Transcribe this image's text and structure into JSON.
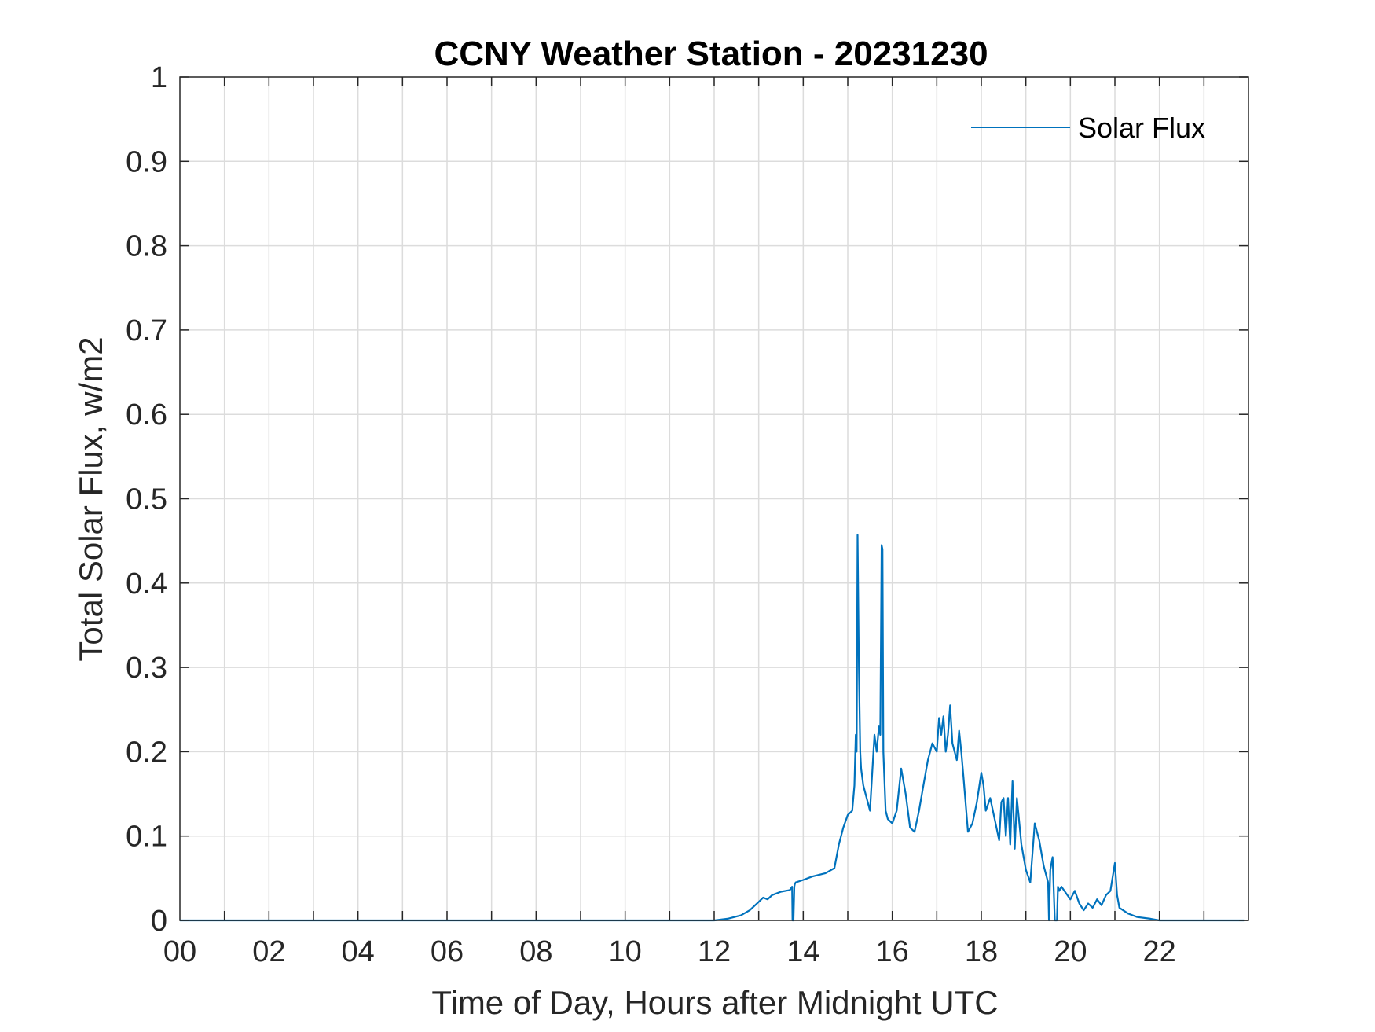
{
  "chart_data": {
    "type": "line",
    "title": "CCNY Weather Station - 20231230",
    "xlabel": "Time of Day, Hours after Midnight UTC",
    "ylabel": "Total Solar Flux, w/m2",
    "xlim": [
      0,
      24
    ],
    "ylim": [
      0,
      1
    ],
    "xticks": [
      0,
      2,
      4,
      6,
      8,
      10,
      12,
      14,
      16,
      18,
      20,
      22
    ],
    "xtick_labels": [
      "00",
      "02",
      "04",
      "06",
      "08",
      "10",
      "12",
      "14",
      "16",
      "18",
      "20",
      "22"
    ],
    "yticks": [
      0,
      0.1,
      0.2,
      0.3,
      0.4,
      0.5,
      0.6,
      0.7,
      0.8,
      0.9,
      1
    ],
    "ytick_labels": [
      "0",
      "0.1",
      "0.2",
      "0.3",
      "0.4",
      "0.5",
      "0.6",
      "0.7",
      "0.8",
      "0.9",
      "1"
    ],
    "grid": true,
    "legend": {
      "position": "top-right",
      "entries": [
        "Solar Flux"
      ]
    },
    "colors": {
      "series": "#0072BD",
      "grid": "#dcdcdc",
      "axes": "#262626"
    },
    "series": [
      {
        "name": "Solar Flux",
        "x": [
          0,
          12.0,
          12.3,
          12.6,
          12.8,
          13.0,
          13.1,
          13.2,
          13.3,
          13.5,
          13.7,
          13.75,
          13.76,
          13.78,
          13.8,
          13.81,
          13.83,
          14.0,
          14.2,
          14.5,
          14.7,
          14.8,
          14.9,
          15.0,
          15.1,
          15.15,
          15.18,
          15.2,
          15.22,
          15.25,
          15.28,
          15.3,
          15.35,
          15.5,
          15.6,
          15.65,
          15.7,
          15.73,
          15.76,
          15.78,
          15.8,
          15.85,
          15.9,
          16.0,
          16.1,
          16.2,
          16.3,
          16.4,
          16.5,
          16.6,
          16.7,
          16.8,
          16.9,
          17.0,
          17.05,
          17.1,
          17.15,
          17.2,
          17.25,
          17.3,
          17.35,
          17.4,
          17.45,
          17.5,
          17.55,
          17.6,
          17.7,
          17.8,
          17.9,
          18.0,
          18.05,
          18.1,
          18.2,
          18.3,
          18.4,
          18.45,
          18.5,
          18.55,
          18.6,
          18.65,
          18.7,
          18.75,
          18.8,
          18.9,
          19.0,
          19.1,
          19.2,
          19.3,
          19.4,
          19.5,
          19.52,
          19.55,
          19.6,
          19.65,
          19.7,
          19.72,
          19.75,
          19.8,
          20.0,
          20.1,
          20.2,
          20.3,
          20.4,
          20.5,
          20.6,
          20.7,
          20.8,
          20.9,
          21.0,
          21.05,
          21.1,
          21.3,
          21.5,
          21.8,
          22.0,
          23.9
        ],
        "values": [
          0,
          0,
          0.002,
          0.006,
          0.012,
          0.022,
          0.027,
          0.025,
          0.03,
          0.034,
          0.036,
          0.04,
          0.0,
          0.0,
          0.04,
          0.043,
          0.045,
          0.048,
          0.052,
          0.056,
          0.062,
          0.09,
          0.11,
          0.125,
          0.13,
          0.16,
          0.22,
          0.2,
          0.457,
          0.3,
          0.2,
          0.18,
          0.16,
          0.13,
          0.22,
          0.2,
          0.23,
          0.22,
          0.445,
          0.44,
          0.2,
          0.13,
          0.12,
          0.115,
          0.13,
          0.18,
          0.15,
          0.11,
          0.105,
          0.13,
          0.16,
          0.19,
          0.21,
          0.2,
          0.24,
          0.22,
          0.242,
          0.2,
          0.22,
          0.255,
          0.21,
          0.2,
          0.19,
          0.225,
          0.2,
          0.17,
          0.105,
          0.115,
          0.14,
          0.175,
          0.16,
          0.13,
          0.145,
          0.12,
          0.095,
          0.14,
          0.145,
          0.1,
          0.145,
          0.09,
          0.165,
          0.085,
          0.145,
          0.09,
          0.06,
          0.045,
          0.115,
          0.095,
          0.065,
          0.045,
          0.0,
          0.06,
          0.075,
          0.0,
          0.0,
          0.04,
          0.035,
          0.04,
          0.025,
          0.035,
          0.02,
          0.012,
          0.02,
          0.015,
          0.025,
          0.018,
          0.03,
          0.035,
          0.068,
          0.03,
          0.015,
          0.008,
          0.004,
          0.002,
          0,
          0
        ]
      }
    ]
  }
}
